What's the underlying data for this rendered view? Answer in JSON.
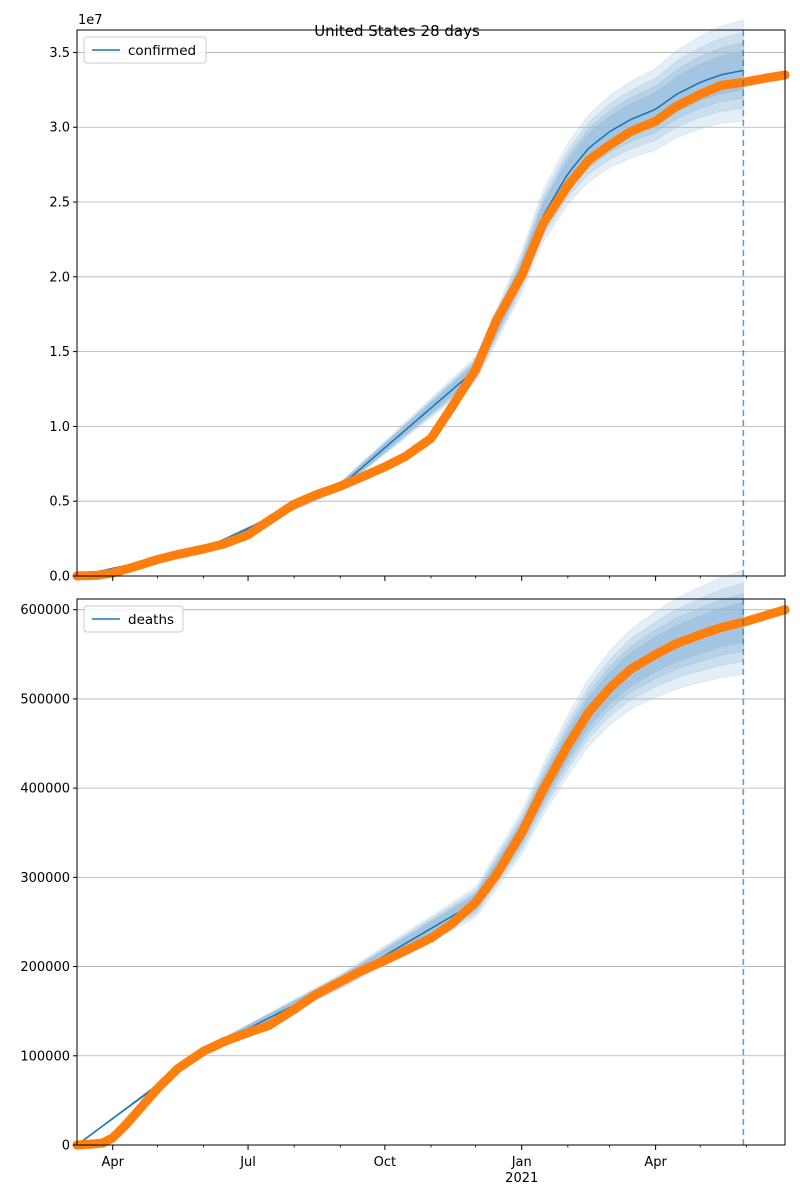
{
  "chart_data": [
    {
      "type": "line",
      "title": "United States 28 days",
      "legend": [
        "confirmed"
      ],
      "legend_position": "top-left",
      "grid": "horizontal",
      "y_offset_label": "1e7",
      "ylim": [
        0,
        36500000
      ],
      "xlim": [
        "2020-03-08",
        "2021-06-27"
      ],
      "x_tick_labels": [
        "Apr",
        "Jul",
        "Oct",
        "Jan",
        "Apr"
      ],
      "x_tick_sublabel": "2021",
      "y_tick_labels": [
        "0.0",
        "0.5",
        "1.0",
        "1.5",
        "2.0",
        "2.5",
        "3.0",
        "3.5"
      ],
      "forecast_start": "2021-05-30",
      "forecast_color": "#1f77b4",
      "observed_color": "#ff7f0e",
      "series": [
        {
          "name": "confirmed",
          "x": [
            "2020-03-08",
            "2020-03-22",
            "2020-04-01",
            "2020-04-15",
            "2020-05-01",
            "2020-05-15",
            "2020-06-01",
            "2020-06-15",
            "2020-07-01",
            "2020-07-15",
            "2020-08-01",
            "2020-08-15",
            "2020-09-01",
            "2020-09-15",
            "2020-10-01",
            "2020-10-15",
            "2020-11-01",
            "2020-11-15",
            "2020-12-01",
            "2020-12-15",
            "2021-01-01",
            "2021-01-15",
            "2021-02-01",
            "2021-02-15",
            "2021-03-01",
            "2021-03-15",
            "2021-04-01",
            "2021-04-15",
            "2021-05-01",
            "2021-05-15",
            "2021-05-30",
            "2021-06-15",
            "2021-06-27"
          ],
          "y": [
            0,
            50000,
            200000,
            600000,
            1100000,
            1450000,
            1800000,
            2150000,
            2750000,
            3700000,
            4800000,
            5400000,
            6000000,
            6600000,
            7300000,
            8000000,
            9200000,
            11300000,
            13800000,
            17100000,
            20100000,
            23500000,
            26100000,
            27800000,
            28800000,
            29700000,
            30400000,
            31400000,
            32200000,
            32800000,
            33000000,
            33300000,
            33500000
          ]
        }
      ],
      "forecast": {
        "x": [
          "2020-03-08",
          "2020-06-01",
          "2020-09-01",
          "2020-12-01",
          "2021-01-01",
          "2021-01-15",
          "2021-02-01",
          "2021-02-15",
          "2021-03-01",
          "2021-03-15",
          "2021-04-01",
          "2021-04-15",
          "2021-05-01",
          "2021-05-15",
          "2021-05-30"
        ],
        "y": [
          0,
          1800000,
          6000000,
          13800000,
          20300000,
          24000000,
          26900000,
          28600000,
          29700000,
          30500000,
          31200000,
          32200000,
          33000000,
          33500000,
          33800000
        ]
      }
    },
    {
      "type": "line",
      "legend": [
        "deaths"
      ],
      "legend_position": "top-left",
      "grid": "horizontal",
      "ylim": [
        0,
        612000
      ],
      "xlim": [
        "2020-03-08",
        "2021-06-27"
      ],
      "x_tick_labels": [
        "Apr",
        "Jul",
        "Oct",
        "Jan",
        "Apr"
      ],
      "x_tick_sublabel": "2021",
      "y_tick_labels": [
        "0",
        "100000",
        "200000",
        "300000",
        "400000",
        "500000",
        "600000"
      ],
      "forecast_start": "2021-05-30",
      "series": [
        {
          "name": "deaths",
          "x": [
            "2020-03-08",
            "2020-03-25",
            "2020-04-01",
            "2020-04-10",
            "2020-04-20",
            "2020-05-01",
            "2020-05-15",
            "2020-06-01",
            "2020-06-15",
            "2020-07-01",
            "2020-07-15",
            "2020-08-01",
            "2020-08-15",
            "2020-09-01",
            "2020-09-15",
            "2020-10-01",
            "2020-10-15",
            "2020-11-01",
            "2020-11-15",
            "2020-12-01",
            "2020-12-15",
            "2021-01-01",
            "2021-01-15",
            "2021-02-01",
            "2021-02-15",
            "2021-03-01",
            "2021-03-15",
            "2021-04-01",
            "2021-04-15",
            "2021-05-01",
            "2021-05-15",
            "2021-05-30",
            "2021-06-15",
            "2021-06-27"
          ],
          "y": [
            0,
            2000,
            8000,
            23000,
            42000,
            63000,
            86000,
            105000,
            116000,
            126000,
            134000,
            152000,
            168000,
            183000,
            195000,
            207000,
            218000,
            232000,
            248000,
            272000,
            303000,
            350000,
            397000,
            448000,
            485000,
            512000,
            533000,
            550000,
            562000,
            572000,
            580000,
            586000,
            594000,
            600000
          ]
        }
      ],
      "forecast": {
        "x": [
          "2020-03-08",
          "2020-06-01",
          "2020-09-01",
          "2020-12-01",
          "2021-01-01",
          "2021-01-15",
          "2021-02-01",
          "2021-02-15",
          "2021-03-01",
          "2021-03-15",
          "2021-04-01",
          "2021-04-15",
          "2021-05-01",
          "2021-05-15",
          "2021-05-30"
        ],
        "y": [
          0,
          105000,
          183000,
          272000,
          350000,
          397000,
          448000,
          485000,
          512000,
          533000,
          550000,
          562000,
          572000,
          580000,
          586000
        ]
      }
    }
  ]
}
